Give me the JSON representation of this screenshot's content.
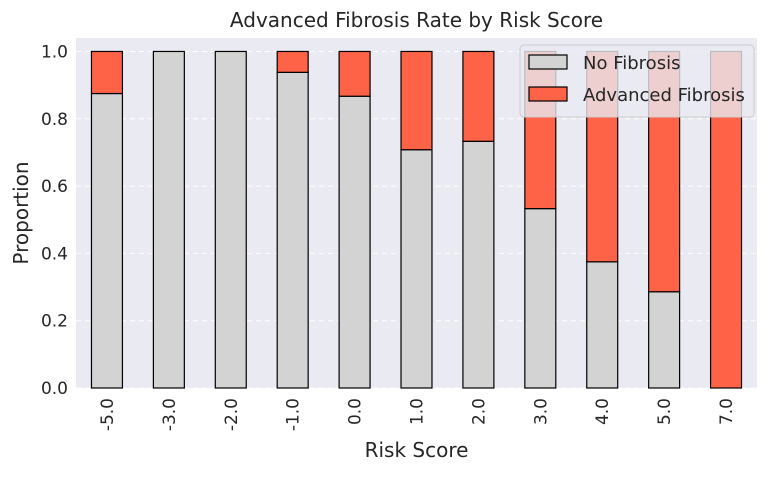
{
  "chart_data": {
    "type": "bar",
    "stacked": true,
    "title": "Advanced Fibrosis Rate by Risk Score",
    "xlabel": "Risk Score",
    "ylabel": "Proportion",
    "categories": [
      "-5.0",
      "-3.0",
      "-2.0",
      "-1.0",
      "0.0",
      "1.0",
      "2.0",
      "3.0",
      "4.0",
      "5.0",
      "7.0"
    ],
    "series": [
      {
        "name": "No Fibrosis",
        "color": "#d3d3d3",
        "values": [
          0.875,
          1.0,
          1.0,
          0.938,
          0.867,
          0.708,
          0.733,
          0.533,
          0.375,
          0.286,
          0.0
        ]
      },
      {
        "name": "Advanced Fibrosis",
        "color": "#ff6347",
        "values": [
          0.125,
          0.0,
          0.0,
          0.062,
          0.133,
          0.292,
          0.267,
          0.467,
          0.625,
          0.714,
          1.0
        ]
      }
    ],
    "ylim": [
      0,
      1.04
    ],
    "yticks": [
      "0.0",
      "0.2",
      "0.4",
      "0.6",
      "0.8",
      "1.0"
    ],
    "grid": true,
    "legend_position": "top-right",
    "background_color": "#eaeaf2"
  }
}
